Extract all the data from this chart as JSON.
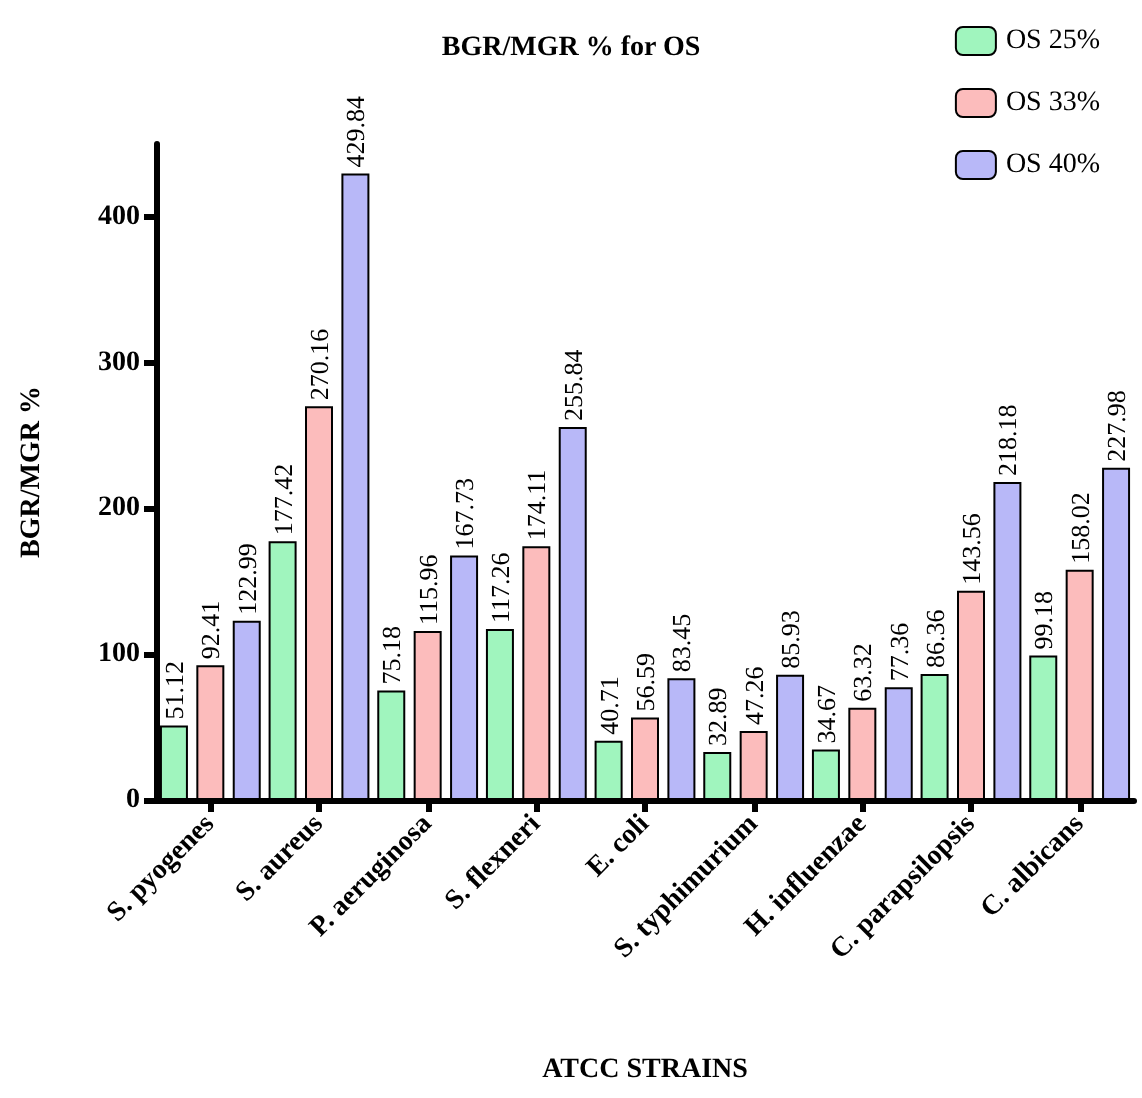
{
  "chart_data": {
    "type": "bar",
    "title": "BGR/MGR % for OS",
    "xlabel": "ATCC STRAINS",
    "ylabel": "BGR/MGR %",
    "categories": [
      "S. pyogenes",
      "S. aureus",
      "P. aeruginosa",
      "S. flexneri",
      "E. coli",
      "S. typhimurium",
      "H. influenzae",
      "C. parapsilopsis",
      "C. albicans"
    ],
    "series": [
      {
        "name": "OS 25%",
        "color": "#a0f5be",
        "values": [
          51.12,
          177.42,
          75.18,
          117.26,
          40.71,
          32.89,
          34.67,
          86.36,
          99.18
        ]
      },
      {
        "name": "OS 33%",
        "color": "#fcbcbc",
        "values": [
          92.41,
          270.16,
          115.96,
          174.11,
          56.59,
          47.26,
          63.32,
          143.56,
          158.02
        ]
      },
      {
        "name": "OS 40%",
        "color": "#b8b8f8",
        "values": [
          122.99,
          429.84,
          167.73,
          255.84,
          83.45,
          85.93,
          77.36,
          218.18,
          227.98
        ]
      }
    ],
    "ylim": [
      0,
      450
    ],
    "yticks": [
      0,
      100,
      200,
      300,
      400
    ],
    "grid": false,
    "legend": "top right",
    "data_labels": true
  }
}
